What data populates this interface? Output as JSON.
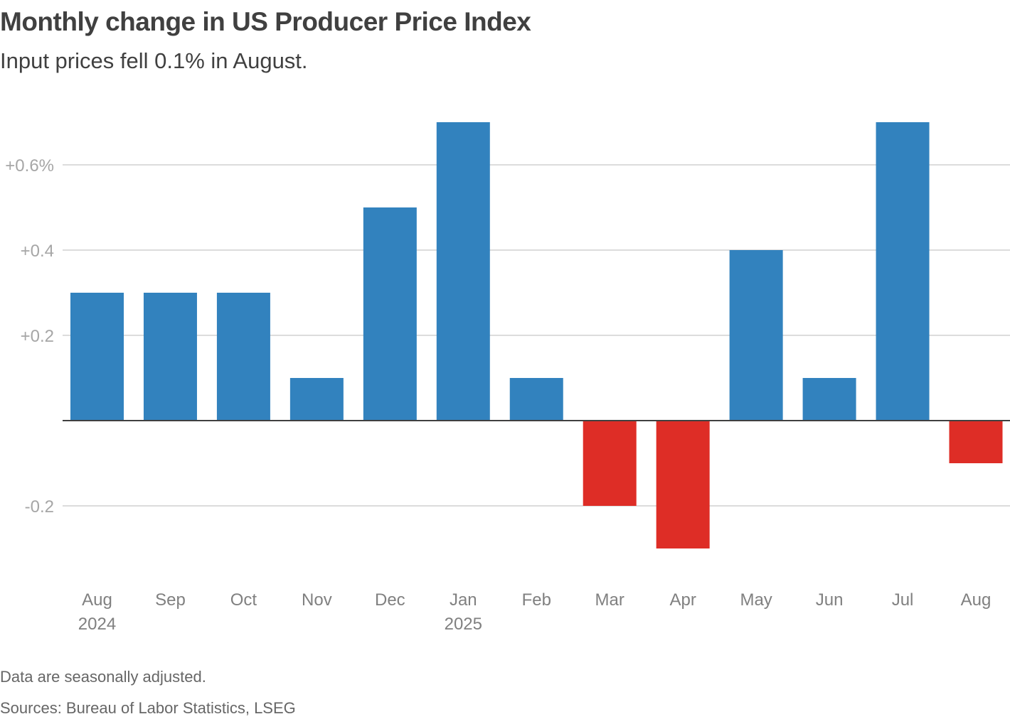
{
  "title": "Monthly change in US Producer Price Index",
  "subtitle": "Input prices fell 0.1% in August.",
  "footnote": "Data are seasonally adjusted.",
  "sources": "Sources: Bureau of Labor Statistics, LSEG",
  "colors": {
    "positive": "#3282be",
    "negative": "#de2d26",
    "grid": "#d0d0d0",
    "zero_line": "#404040"
  },
  "chart_data": {
    "type": "bar",
    "title": "Monthly change in US Producer Price Index",
    "subtitle": "Input prices fell 0.1% in August.",
    "xlabel": "",
    "ylabel": "",
    "categories": [
      "Aug",
      "Sep",
      "Oct",
      "Nov",
      "Dec",
      "Jan",
      "Feb",
      "Mar",
      "Apr",
      "May",
      "Jun",
      "Jul",
      "Aug"
    ],
    "category_sublabels": [
      "2024",
      "",
      "",
      "",
      "",
      "2025",
      "",
      "",
      "",
      "",
      "",
      "",
      ""
    ],
    "values": [
      0.3,
      0.3,
      0.3,
      0.1,
      0.5,
      0.7,
      0.1,
      -0.2,
      -0.3,
      0.4,
      0.1,
      0.7,
      -0.1
    ],
    "ylim": [
      -0.35,
      0.75
    ],
    "yticks": [
      {
        "value": 0.6,
        "label": "+0.6%"
      },
      {
        "value": 0.4,
        "label": "+0.4"
      },
      {
        "value": 0.2,
        "label": "+0.2"
      },
      {
        "value": -0.2,
        "label": "-0.2"
      }
    ],
    "grid": true,
    "legend": "none"
  }
}
